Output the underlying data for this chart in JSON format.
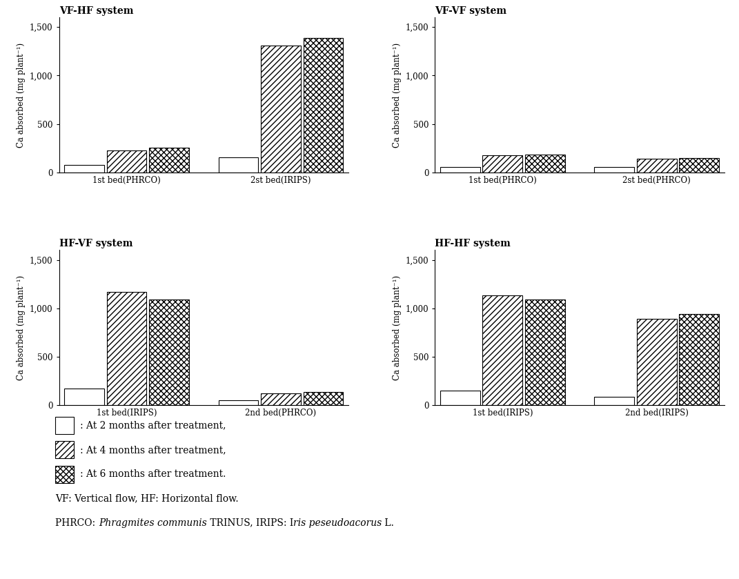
{
  "subplots": [
    {
      "title": "VF-HF system",
      "groups": [
        "1st bed(PHRCO)",
        "2st bed(IRIPS)"
      ],
      "values": [
        [
          75,
          230,
          255
        ],
        [
          160,
          1310,
          1390
        ]
      ]
    },
    {
      "title": "VF-VF system",
      "groups": [
        "1st bed(PHRCO)",
        "2st bed(PHRCO)"
      ],
      "values": [
        [
          60,
          175,
          185
        ],
        [
          55,
          145,
          150
        ]
      ]
    },
    {
      "title": "HF-VF system",
      "groups": [
        "1st bed(IRIPS)",
        "2nd bed(PHRCO)"
      ],
      "values": [
        [
          170,
          1170,
          1090
        ],
        [
          50,
          120,
          135
        ]
      ]
    },
    {
      "title": "HF-HF system",
      "groups": [
        "1st bed(IRIPS)",
        "2nd bed(IRIPS)"
      ],
      "values": [
        [
          155,
          1130,
          1090
        ],
        [
          90,
          890,
          940
        ]
      ]
    }
  ],
  "ylabel": "Ca absorbed (mg plant⁻¹)",
  "ylim": [
    0,
    1600
  ],
  "yticks": [
    0,
    500,
    1000,
    1500
  ],
  "yticklabels": [
    "0",
    "500",
    "1,000",
    "1,500"
  ],
  "bar_colors": [
    "white",
    "white",
    "white"
  ],
  "hatch_patterns": [
    "",
    "////",
    "xxxx"
  ],
  "bar_edge_color": "black",
  "bar_width": 0.22,
  "background_color": "white",
  "legend_sym_configs": [
    {
      "color": "white",
      "hatch": "",
      "edgecolor": "black"
    },
    {
      "color": "white",
      "hatch": "////",
      "edgecolor": "black"
    },
    {
      "color": "white",
      "hatch": "xxxx",
      "edgecolor": "black"
    }
  ],
  "legend_texts": [
    ": At 2 months after treatment,",
    ": At 4 months after treatment,",
    ": At 6 months after treatment."
  ],
  "extra_texts": [
    "VF: Vertical flow, HF: Horizontal flow."
  ]
}
